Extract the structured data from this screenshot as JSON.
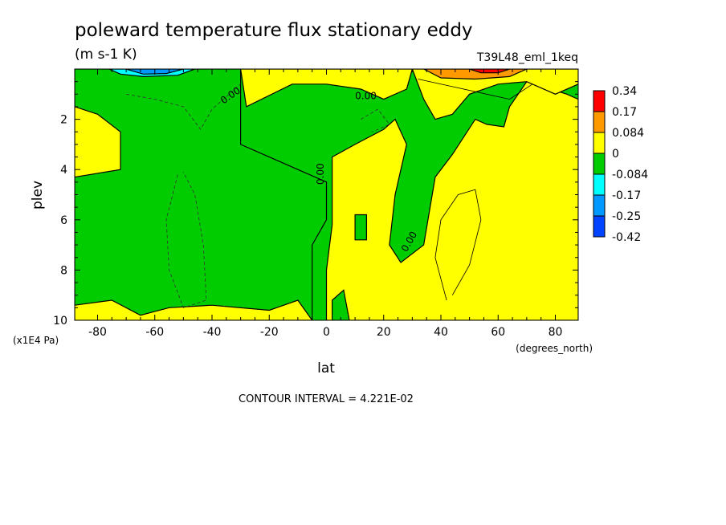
{
  "chart_data": {
    "type": "heatmap",
    "title": "poleward temperature flux stationary eddy",
    "units": "(m s-1 K)",
    "dataset": "T39L48_eml_1keq",
    "xlabel": "lat",
    "xunits": "(degrees_north)",
    "ylabel": "plev",
    "yunits": "(x1E4 Pa)",
    "xlim": [
      -88,
      88
    ],
    "ylim": [
      10,
      0
    ],
    "x_ticks": [
      -80,
      -60,
      -40,
      -20,
      0,
      20,
      40,
      60,
      80
    ],
    "y_ticks": [
      2,
      4,
      6,
      8,
      10
    ],
    "contour_interval_text": "CONTOUR INTERVAL = 4.221E-02",
    "contour_labels": [
      "0.00",
      "0.00",
      "0.00",
      "0.00"
    ],
    "colorbar": {
      "levels": [
        "0.34",
        "0.17",
        "0.084",
        "0",
        "-0.084",
        "-0.17",
        "-0.25",
        "-0.42"
      ],
      "colors": [
        "#ff0000",
        "#ff9900",
        "#ffff00",
        "#00cc00",
        "#00ffff",
        "#0099ff",
        "#0044ff"
      ]
    },
    "palette": {
      "positive_low": "#ffff00",
      "negative_low": "#00cc00",
      "positive_mid": "#ff9900",
      "positive_high": "#ff0000",
      "negative_mid": "#00ffff",
      "negative_high": "#0099ff",
      "negative_max": "#0044ff"
    },
    "regions": [
      {
        "sign": "negative_low",
        "description_points": [
          [
            -88,
            0
          ],
          [
            -30,
            0
          ],
          [
            -30,
            3
          ],
          [
            -20,
            3.5
          ],
          [
            -10,
            4
          ],
          [
            0,
            4.5
          ],
          [
            0,
            6
          ],
          [
            -5,
            7
          ],
          [
            -5,
            10
          ],
          [
            -88,
            10
          ]
        ]
      },
      {
        "sign": "positive_low",
        "description_points": [
          [
            -88,
            1.5
          ],
          [
            -80,
            1.8
          ],
          [
            -72,
            2.5
          ],
          [
            -72,
            4
          ],
          [
            -88,
            4.3
          ]
        ]
      },
      {
        "sign": "positive_low",
        "description_points": [
          [
            -88,
            10
          ],
          [
            -88,
            9.4
          ],
          [
            -75,
            9.2
          ],
          [
            -65,
            9.8
          ],
          [
            -55,
            9.5
          ],
          [
            -40,
            9.4
          ],
          [
            -20,
            9.6
          ],
          [
            -10,
            9.2
          ],
          [
            -5,
            10
          ]
        ]
      },
      {
        "sign": "positive_low",
        "description_points": [
          [
            -30,
            0
          ],
          [
            30,
            0
          ],
          [
            28,
            0.8
          ],
          [
            20,
            1.2
          ],
          [
            12,
            0.8
          ],
          [
            0,
            0.6
          ],
          [
            -12,
            0.6
          ],
          [
            -28,
            1.5
          ]
        ]
      },
      {
        "sign": "positive_low",
        "description_points": [
          [
            0,
            10
          ],
          [
            0,
            8
          ],
          [
            2,
            6.2
          ],
          [
            2,
            3.5
          ],
          [
            10,
            3
          ],
          [
            20,
            2.4
          ],
          [
            24,
            2
          ],
          [
            28,
            3
          ],
          [
            24,
            5
          ],
          [
            22,
            7
          ],
          [
            26,
            7.7
          ],
          [
            34,
            7
          ],
          [
            38,
            4.3
          ],
          [
            44,
            3.4
          ],
          [
            52,
            2
          ],
          [
            56,
            2.2
          ],
          [
            62,
            2.3
          ],
          [
            64,
            1.5
          ],
          [
            70,
            0.5
          ],
          [
            84,
            1
          ],
          [
            88,
            1.2
          ],
          [
            88,
            10
          ]
        ]
      },
      {
        "sign": "positive_low",
        "description_points": [
          [
            30,
            0
          ],
          [
            88,
            0
          ],
          [
            88,
            0.6
          ],
          [
            80,
            1
          ],
          [
            70,
            0.5
          ],
          [
            60,
            0.6
          ],
          [
            50,
            1
          ],
          [
            44,
            1.8
          ],
          [
            38,
            2
          ],
          [
            34,
            1.2
          ]
        ]
      },
      {
        "sign": "negative_low",
        "description_points": [
          [
            10,
            5.8
          ],
          [
            14,
            5.8
          ],
          [
            14,
            6.8
          ],
          [
            10,
            6.8
          ]
        ]
      },
      {
        "sign": "negative_low",
        "description_points": [
          [
            2,
            9.2
          ],
          [
            6,
            8.8
          ],
          [
            8,
            10
          ],
          [
            2,
            10
          ]
        ]
      },
      {
        "sign": "positive_mid",
        "description_points": [
          [
            34,
            0
          ],
          [
            70,
            0
          ],
          [
            64,
            0.3
          ],
          [
            52,
            0.4
          ],
          [
            40,
            0.35
          ]
        ]
      },
      {
        "sign": "positive_high",
        "description_points": [
          [
            50,
            0
          ],
          [
            64,
            0
          ],
          [
            60,
            0.15
          ],
          [
            54,
            0.15
          ]
        ]
      },
      {
        "sign": "negative_mid",
        "description_points": [
          [
            -76,
            0
          ],
          [
            -46,
            0
          ],
          0,
          [
            -52,
            0.25
          ],
          [
            -64,
            0.3
          ],
          [
            -72,
            0.2
          ]
        ]
      },
      {
        "sign": "negative_high",
        "description_points": [
          [
            -70,
            0
          ],
          [
            -50,
            0
          ],
          [
            -56,
            0.18
          ],
          [
            -64,
            0.2
          ]
        ]
      }
    ]
  }
}
